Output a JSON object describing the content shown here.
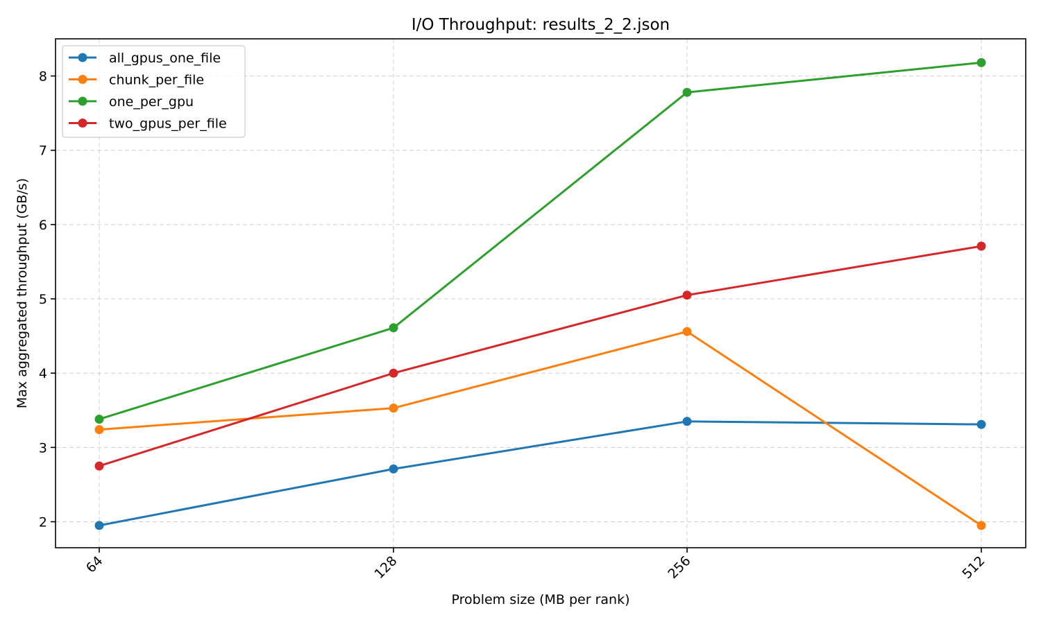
{
  "chart_data": {
    "type": "line",
    "title": "I/O Throughput: results_2_2.json",
    "xlabel": "Problem size (MB per rank)",
    "ylabel": "Max aggregated throughput (GB/s)",
    "x": [
      "64",
      "128",
      "256",
      "512"
    ],
    "y_ticks": [
      "2",
      "3",
      "4",
      "5",
      "6",
      "7",
      "8"
    ],
    "ylim": [
      1.65,
      8.5
    ],
    "grid": true,
    "legend_position": "upper-left",
    "series": [
      {
        "name": "all_gpus_one_file",
        "color": "#1f77b4",
        "values": [
          1.95,
          2.71,
          3.35,
          3.31
        ]
      },
      {
        "name": "chunk_per_file",
        "color": "#ff7f0e",
        "values": [
          3.24,
          3.53,
          4.56,
          1.95
        ]
      },
      {
        "name": "one_per_gpu",
        "color": "#2ca02c",
        "values": [
          3.38,
          4.61,
          7.78,
          8.18
        ]
      },
      {
        "name": "two_gpus_per_file",
        "color": "#d62728",
        "values": [
          2.75,
          4.0,
          5.05,
          5.71
        ]
      }
    ]
  }
}
